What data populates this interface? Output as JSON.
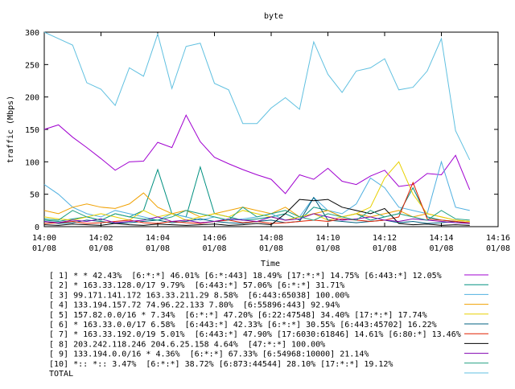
{
  "chart_data": {
    "type": "line",
    "title": "byte",
    "x_label": "Time",
    "y_label": "traffic (Mbps)",
    "xlim": [
      0,
      16
    ],
    "ylim": [
      0,
      300
    ],
    "xticks": [
      {
        "value": 0,
        "label": "14:00\n01/08"
      },
      {
        "value": 2,
        "label": "14:02\n01/08"
      },
      {
        "value": 4,
        "label": "14:04\n01/08"
      },
      {
        "value": 6,
        "label": "14:06\n01/08"
      },
      {
        "value": 8,
        "label": "14:08\n01/08"
      },
      {
        "value": 10,
        "label": "14:10\n01/08"
      },
      {
        "value": 12,
        "label": "14:12\n01/08"
      },
      {
        "value": 14,
        "label": "14:14\n01/08"
      },
      {
        "value": 16,
        "label": "14:16\n01/08"
      }
    ],
    "yticks": [
      0,
      50,
      100,
      150,
      200,
      250,
      300
    ],
    "x": [
      0,
      0.5,
      1,
      1.5,
      2,
      2.5,
      3,
      3.5,
      4,
      4.5,
      5,
      5.5,
      6,
      6.5,
      7,
      7.5,
      8,
      8.5,
      9,
      9.5,
      10,
      10.5,
      11,
      11.5,
      12,
      12.5,
      13,
      13.5,
      14,
      14.5,
      15
    ],
    "series": [
      {
        "name": "[ 1] * * 42.43%  [6:*:*] 46.01% [6:*:443] 18.49% [17:*:*] 14.75% [6:443:*] 12.05%",
        "color": "#a000d0",
        "values": [
          150,
          157,
          138,
          122,
          105,
          87,
          100,
          101,
          130,
          122,
          172,
          131,
          107,
          97,
          88,
          80,
          73,
          51,
          80,
          73,
          90,
          70,
          65,
          78,
          87,
          62,
          65,
          82,
          80,
          110,
          57
        ]
      },
      {
        "name": "[ 2] * 163.33.128.0/17 9.79%  [6:443:*] 57.06% [6:*:*] 31.71%",
        "color": "#009080",
        "values": [
          10,
          8,
          12,
          15,
          10,
          20,
          15,
          25,
          88,
          20,
          15,
          92,
          20,
          15,
          10,
          12,
          15,
          20,
          10,
          30,
          25,
          15,
          20,
          10,
          15,
          20,
          60,
          15,
          10,
          8,
          5
        ]
      },
      {
        "name": "[ 3] 99.171.141.172 163.33.211.29 8.58%  [6:443:65038] 100.00%",
        "color": "#50b0e0",
        "values": [
          65,
          50,
          30,
          20,
          15,
          25,
          20,
          15,
          10,
          20,
          15,
          10,
          15,
          10,
          12,
          15,
          20,
          10,
          15,
          45,
          25,
          20,
          35,
          75,
          60,
          30,
          25,
          20,
          100,
          30,
          25
        ]
      },
      {
        "name": "[ 4] 133.194.157.72 74.96.22.133 7.80%  [6:55896:443] 92.94%",
        "color": "#f0a000",
        "values": [
          25,
          20,
          30,
          35,
          30,
          28,
          35,
          52,
          30,
          20,
          25,
          15,
          20,
          25,
          30,
          25,
          20,
          30,
          15,
          20,
          25,
          15,
          20,
          15,
          20,
          25,
          15,
          20,
          15,
          10,
          8
        ]
      },
      {
        "name": "[ 5] 157.82.0.0/16 * 7.34%  [6:*:*] 47.20% [6:22:47548] 34.40% [17:*:*] 17.74%",
        "color": "#e8d000",
        "values": [
          15,
          12,
          10,
          15,
          20,
          15,
          10,
          25,
          15,
          20,
          10,
          15,
          20,
          15,
          25,
          20,
          15,
          10,
          15,
          20,
          10,
          15,
          20,
          30,
          75,
          100,
          50,
          20,
          15,
          10,
          8
        ]
      },
      {
        "name": "[ 6] * 163.33.0.0/17 6.58%  [6:443:*] 42.33% [6:*:*] 30.55% [6:443:45702] 16.22%",
        "color": "#006080",
        "values": [
          8,
          5,
          6,
          10,
          8,
          5,
          6,
          8,
          10,
          6,
          8,
          12,
          8,
          6,
          5,
          8,
          10,
          6,
          8,
          45,
          10,
          8,
          6,
          8,
          10,
          6,
          8,
          5,
          6,
          8,
          5
        ]
      },
      {
        "name": "[ 7] * 163.33.192.0/19 5.01%  [6:443:*] 47.90% [17:6030:61846] 14.61% [6:80:*] 13.46%",
        "color": "#e02000",
        "values": [
          5,
          6,
          8,
          5,
          6,
          8,
          10,
          6,
          5,
          8,
          6,
          5,
          8,
          10,
          6,
          8,
          5,
          6,
          8,
          10,
          8,
          12,
          10,
          8,
          10,
          15,
          68,
          12,
          10,
          8,
          6
        ]
      },
      {
        "name": "[ 8] 203.242.118.246 204.6.25.158 4.64%  [47:*:*] 100.00%",
        "color": "#000000",
        "values": [
          3,
          2,
          4,
          3,
          2,
          5,
          3,
          2,
          4,
          3,
          2,
          3,
          4,
          2,
          3,
          5,
          3,
          20,
          42,
          40,
          42,
          30,
          25,
          20,
          28,
          5,
          3,
          4,
          2,
          3,
          2
        ]
      },
      {
        "name": "[ 9] 133.194.0.0/16 * 4.36%  [6:*:*] 67.33% [6:54968:10000] 21.14%",
        "color": "#8000b0",
        "values": [
          8,
          6,
          10,
          8,
          12,
          6,
          8,
          10,
          15,
          8,
          10,
          6,
          8,
          12,
          10,
          8,
          15,
          10,
          12,
          20,
          15,
          10,
          12,
          15,
          10,
          8,
          12,
          10,
          8,
          6,
          5
        ]
      },
      {
        "name": "[10] *:: *:: 3.47%  [6:*:*] 38.72% [6:873:44544] 28.10% [17:*:*] 19.12%",
        "color": "#20a080",
        "values": [
          12,
          10,
          25,
          15,
          10,
          20,
          15,
          12,
          10,
          15,
          25,
          20,
          15,
          10,
          30,
          15,
          20,
          25,
          15,
          10,
          20,
          15,
          10,
          25,
          15,
          20,
          15,
          10,
          25,
          12,
          10
        ]
      },
      {
        "name": "TOTAL",
        "color": "#60c0e0",
        "values": [
          300,
          290,
          280,
          222,
          212,
          187,
          245,
          232,
          297,
          213,
          278,
          283,
          221,
          211,
          159,
          159,
          183,
          199,
          181,
          285,
          235,
          207,
          240,
          245,
          259,
          211,
          215,
          240,
          290,
          148,
          103
        ]
      }
    ]
  }
}
